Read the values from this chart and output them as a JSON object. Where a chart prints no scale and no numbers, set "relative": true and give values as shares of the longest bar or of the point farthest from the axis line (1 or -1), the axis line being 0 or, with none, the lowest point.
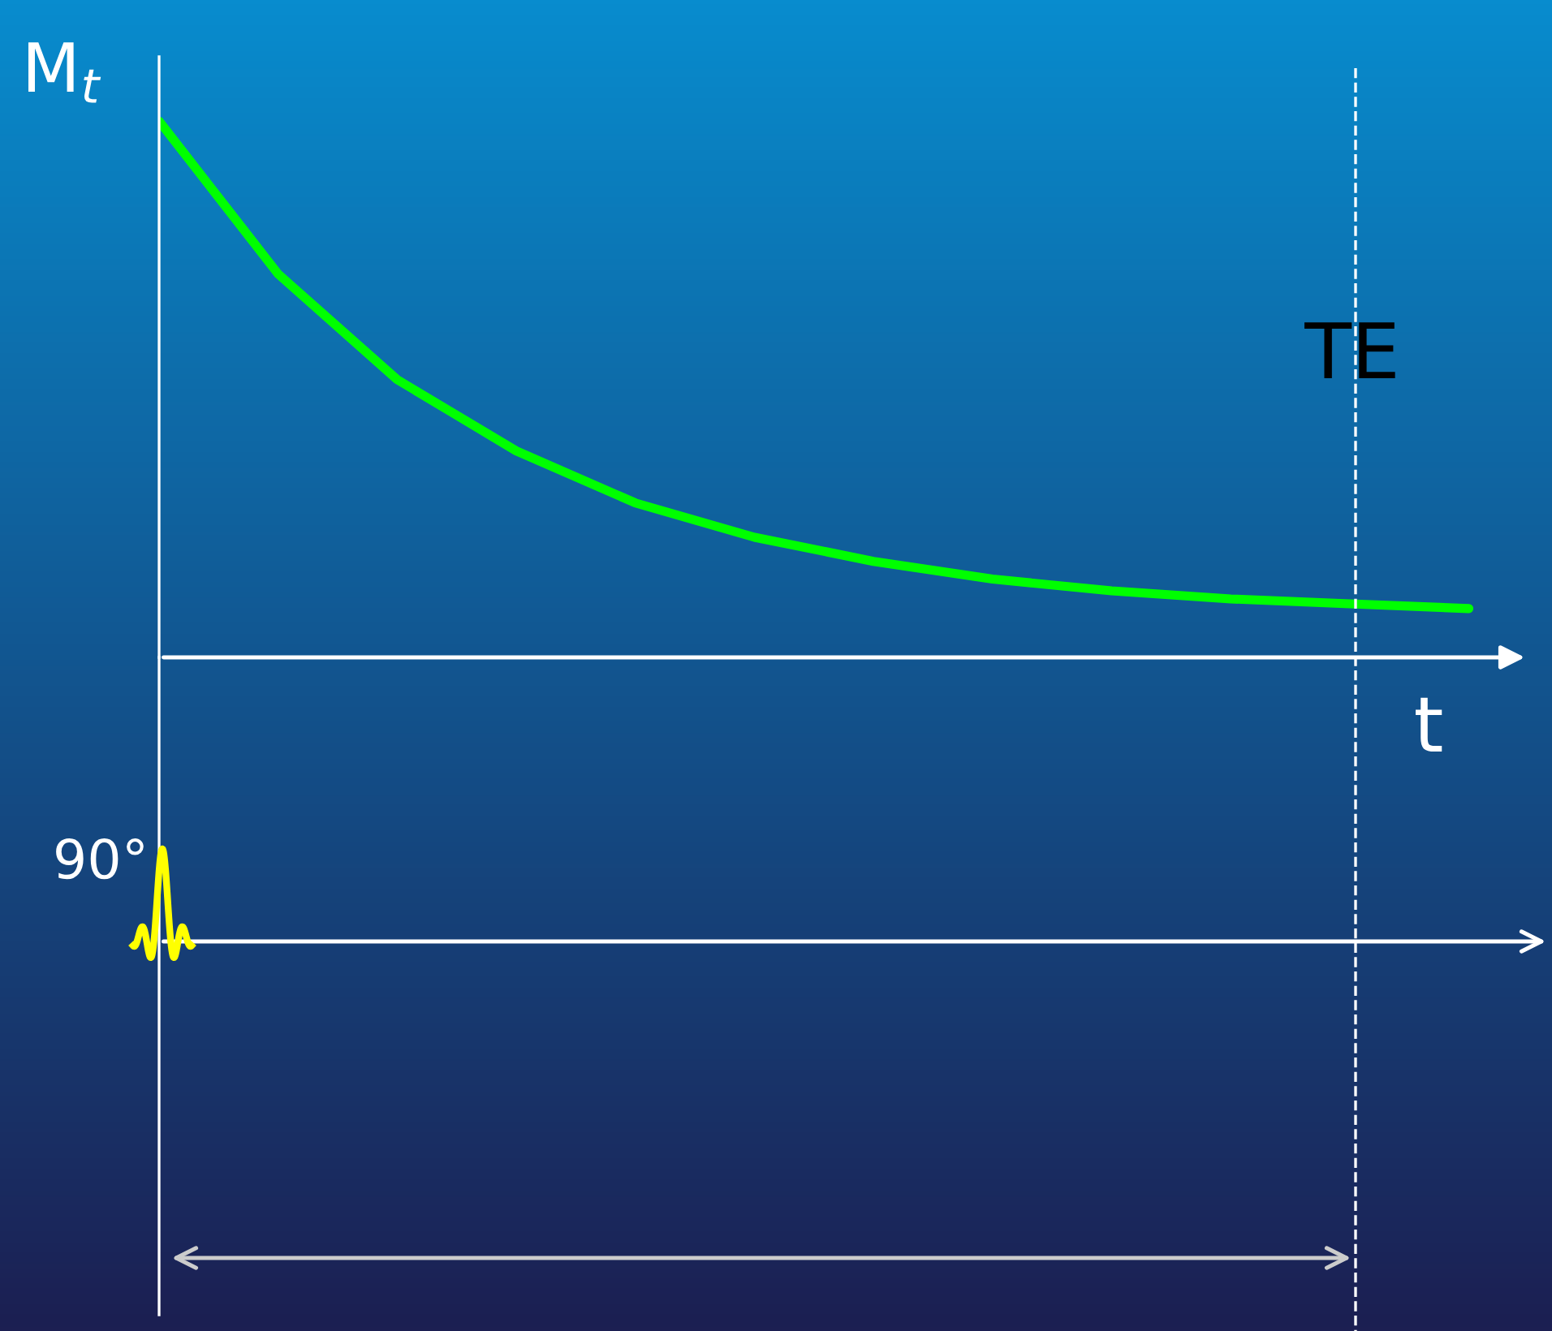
{
  "chart_data": {
    "type": "line",
    "relative": true,
    "xlabel": "t",
    "ylabel": "M$_{t}$",
    "categories": [
      null,
      null,
      null,
      null,
      null,
      null,
      null,
      null,
      null,
      null,
      null,
      null
    ],
    "series": [
      {
        "color": "#00ff00",
        "values": [
          1.0,
          0.715,
          0.518,
          0.385,
          0.288,
          0.224,
          0.179,
          0.146,
          0.124,
          0.109,
          0.1,
          0.091
        ]
      }
    ],
    "annotations": [
      "TE",
      "90°"
    ],
    "grid": false,
    "legend": false,
    "marker": "none",
    "line_style": "solid"
  }
}
